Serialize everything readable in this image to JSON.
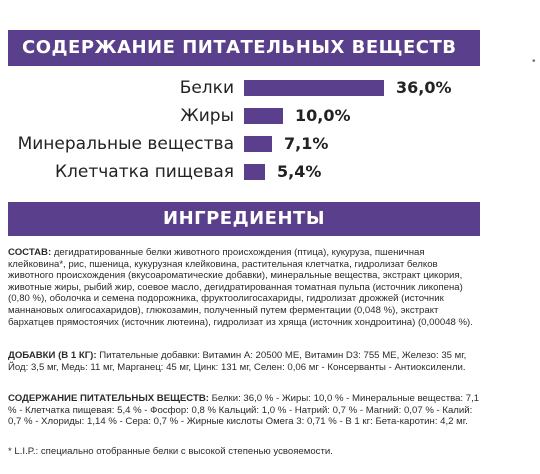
{
  "nutrients": {
    "title": "СОДЕРЖАНИЕ ПИТАТЕЛЬНЫХ ВЕЩЕСТВ",
    "scale_max_percent": 36.0,
    "rows": [
      {
        "label": "Белки",
        "value": "36,0%",
        "percent": 36.0
      },
      {
        "label": "Жиры",
        "value": "10,0%",
        "percent": 10.0
      },
      {
        "label": "Минеральные вещества",
        "value": "7,1%",
        "percent": 7.1
      },
      {
        "label": "Клетчатка пищевая",
        "value": "5,4%",
        "percent": 5.4
      }
    ]
  },
  "ingredients": {
    "title": "ИНГРЕДИЕНТЫ",
    "composition_label": "СОСТАВ:",
    "composition_text": " дегидратированные белки животного происхождения (птица), кукуруза, пшеничная клейковина*, рис, пшеница, кукурузная клейковина, растительная клетчатка, гидролизат белков животного происхождения (вкусоароматические добавки), минеральные вещества, экстракт цикория, животные жиры, рыбий жир, соевое масло, дегидратированная томатная пульпа (источник ликопена) (0,80 %), оболочка и семена подорожника, фруктоолигосахариды, гидролизат дрожжей (источник маннановых олигосахаридов), глюкозамин, полученный путем ферментации (0,048 %), экстракт бархатцев прямостоячих (источник лютеина), гидролизат из хряща (источник хондроитина) (0,00048 %).",
    "additives_label": "ДОБАВКИ (В 1 КГ):",
    "additives_text": " Питательные добавки: Витамин A: 20500 ME, Витамин D3: 755 ME, Железо: 35 мг, Йод: 3,5 мг, Медь: 11 мг, Марганец: 45 мг, Цинк: 131 мг, Селен: 0,06 мг - Консерванты - Антиоксиленли.",
    "nutrients_label": "СОДЕРЖАНИЕ ПИТАТЕЛЬНЫХ ВЕЩЕСТВ:",
    "nutrients_text": " Белки: 36,0 % - Жиры: 10,0 % - Минеральные вещества: 7,1 % - Клетчатка пищевая: 5,4 % - Фосфор: 0,8 % Кальций: 1,0 % - Натрий: 0,7 % - Магний: 0,07 % - Калий: 0,7 % - Хлориды: 1,14 % - Сера: 0,7 % - Жирные кислоты Омега 3: 0,71 % - В 1 кг: Бета-каротин: 4,2 мг.",
    "footnote": "* L.I.P.: специально отобранные белки с высокой степенью усвояемости."
  },
  "side_mark": "•"
}
